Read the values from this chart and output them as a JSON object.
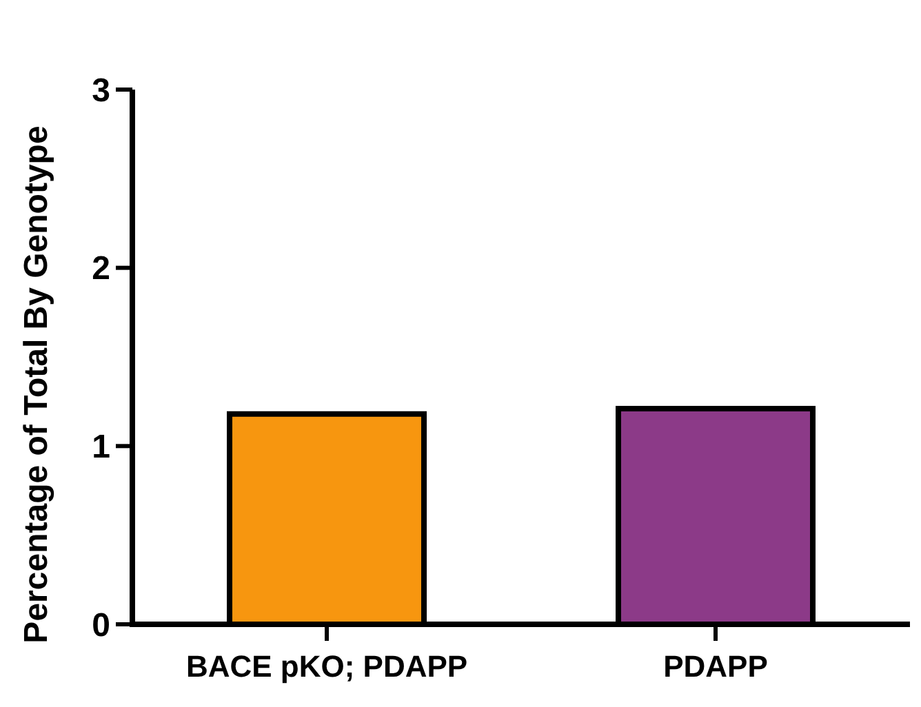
{
  "chart_data": {
    "type": "bar",
    "ylabel": "Percentage of Total By Genotype",
    "categories": [
      "BACE pKO; PDAPP",
      "PDAPP"
    ],
    "values": [
      1.18,
      1.21
    ],
    "colors": [
      "#f7960f",
      "#8c3a88"
    ],
    "ylim": [
      0,
      3
    ],
    "yticks": [
      0,
      1,
      2,
      3
    ],
    "grid": false
  }
}
